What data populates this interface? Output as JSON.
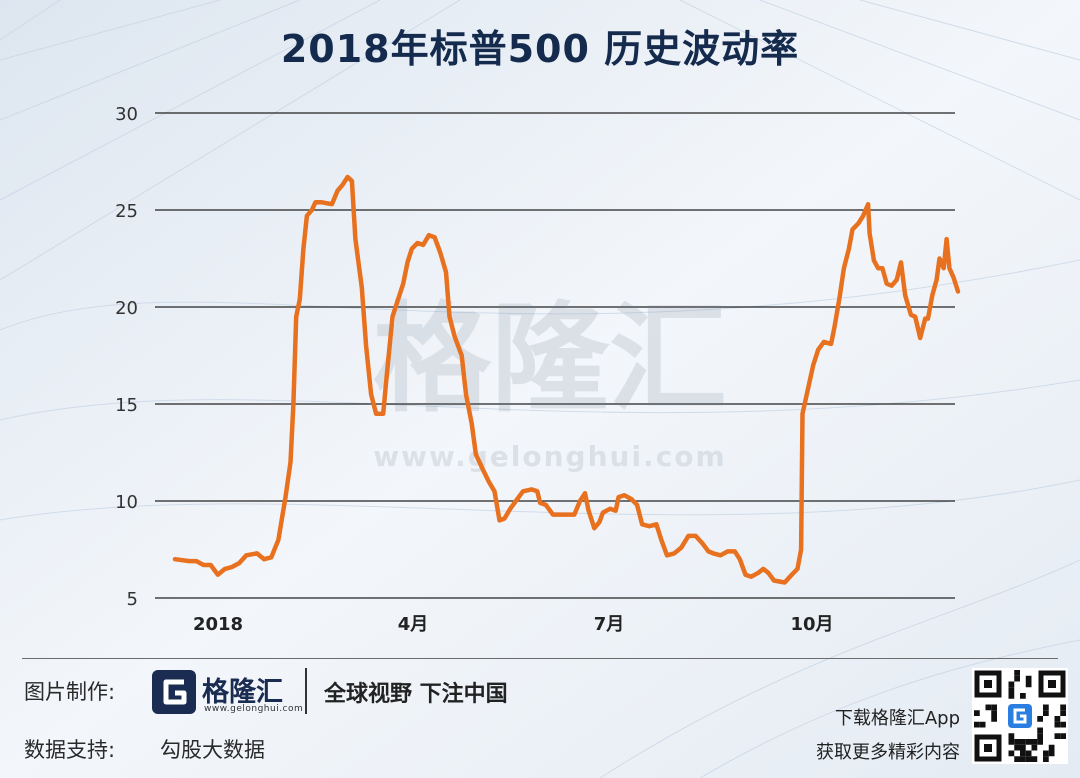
{
  "title": "2018年标普500 历史波动率",
  "watermark": {
    "name": "格隆汇",
    "url": "www.gelonghui.com"
  },
  "chart_data": {
    "type": "line",
    "title": "2018年标普500 历史波动率",
    "xlabel": "",
    "ylabel": "",
    "ylim": [
      5,
      30
    ],
    "yticks": [
      5,
      10,
      15,
      20,
      25,
      30
    ],
    "xticks": [
      {
        "label": "2018",
        "x": 0.5
      },
      {
        "label": "4月",
        "x": 3.0
      },
      {
        "label": "7月",
        "x": 6.0
      },
      {
        "label": "10月",
        "x": 9.0
      }
    ],
    "xlim": [
      -0.1,
      11.6
    ],
    "grid": true,
    "color": "#e8711f",
    "series": [
      {
        "name": "",
        "points": [
          [
            0.0,
            7.0
          ],
          [
            0.2,
            6.9
          ],
          [
            0.3,
            6.9
          ],
          [
            0.4,
            6.7
          ],
          [
            0.5,
            6.7
          ],
          [
            0.6,
            6.2
          ],
          [
            0.7,
            6.5
          ],
          [
            0.8,
            6.6
          ],
          [
            0.9,
            6.8
          ],
          [
            1.0,
            7.2
          ],
          [
            1.15,
            7.3
          ],
          [
            1.25,
            7.0
          ],
          [
            1.35,
            7.1
          ],
          [
            1.45,
            8.0
          ],
          [
            1.55,
            10.2
          ],
          [
            1.62,
            12.0
          ],
          [
            1.66,
            15.0
          ],
          [
            1.7,
            19.5
          ],
          [
            1.75,
            20.4
          ],
          [
            1.8,
            23.0
          ],
          [
            1.85,
            24.7
          ],
          [
            1.92,
            25.0
          ],
          [
            1.97,
            25.4
          ],
          [
            2.05,
            25.4
          ],
          [
            2.2,
            25.3
          ],
          [
            2.28,
            26.0
          ],
          [
            2.35,
            26.3
          ],
          [
            2.42,
            26.7
          ],
          [
            2.48,
            26.5
          ],
          [
            2.53,
            23.5
          ],
          [
            2.62,
            21.0
          ],
          [
            2.68,
            18.0
          ],
          [
            2.75,
            15.5
          ],
          [
            2.82,
            14.5
          ],
          [
            2.92,
            14.5
          ],
          [
            2.97,
            16.5
          ],
          [
            3.05,
            19.5
          ],
          [
            3.12,
            20.3
          ],
          [
            3.2,
            21.2
          ],
          [
            3.26,
            22.3
          ],
          [
            3.32,
            23.0
          ],
          [
            3.4,
            23.3
          ],
          [
            3.48,
            23.2
          ],
          [
            3.56,
            23.7
          ],
          [
            3.64,
            23.6
          ],
          [
            3.72,
            22.8
          ],
          [
            3.8,
            21.8
          ],
          [
            3.85,
            19.5
          ],
          [
            3.92,
            18.5
          ],
          [
            4.02,
            17.5
          ],
          [
            4.08,
            15.5
          ],
          [
            4.16,
            14.0
          ],
          [
            4.22,
            12.4
          ],
          [
            4.32,
            11.6
          ],
          [
            4.4,
            11.0
          ],
          [
            4.48,
            10.5
          ],
          [
            4.55,
            9.0
          ],
          [
            4.62,
            9.1
          ],
          [
            4.7,
            9.6
          ],
          [
            4.78,
            10.0
          ],
          [
            4.88,
            10.5
          ],
          [
            5.0,
            10.6
          ],
          [
            5.08,
            10.5
          ],
          [
            5.12,
            9.9
          ],
          [
            5.2,
            9.8
          ],
          [
            5.3,
            9.3
          ],
          [
            5.45,
            9.3
          ],
          [
            5.6,
            9.3
          ],
          [
            5.68,
            10.0
          ],
          [
            5.75,
            10.4
          ],
          [
            5.8,
            9.5
          ],
          [
            5.88,
            8.6
          ],
          [
            5.95,
            8.9
          ],
          [
            6.0,
            9.4
          ],
          [
            6.1,
            9.6
          ],
          [
            6.18,
            9.5
          ],
          [
            6.22,
            10.2
          ],
          [
            6.3,
            10.3
          ],
          [
            6.4,
            10.1
          ],
          [
            6.48,
            9.8
          ],
          [
            6.55,
            8.8
          ],
          [
            6.65,
            8.7
          ],
          [
            6.75,
            8.8
          ],
          [
            6.82,
            8.0
          ],
          [
            6.9,
            7.2
          ],
          [
            7.0,
            7.3
          ],
          [
            7.1,
            7.6
          ],
          [
            7.2,
            8.2
          ],
          [
            7.3,
            8.2
          ],
          [
            7.4,
            7.8
          ],
          [
            7.48,
            7.4
          ],
          [
            7.55,
            7.3
          ],
          [
            7.65,
            7.2
          ],
          [
            7.75,
            7.4
          ],
          [
            7.85,
            7.4
          ],
          [
            7.92,
            7.0
          ],
          [
            8.0,
            6.2
          ],
          [
            8.08,
            6.1
          ],
          [
            8.18,
            6.3
          ],
          [
            8.25,
            6.5
          ],
          [
            8.32,
            6.3
          ],
          [
            8.4,
            5.9
          ],
          [
            8.55,
            5.8
          ],
          [
            8.65,
            6.2
          ],
          [
            8.73,
            6.5
          ],
          [
            8.78,
            7.5
          ],
          [
            8.8,
            14.5
          ],
          [
            8.86,
            15.5
          ],
          [
            8.95,
            17.0
          ],
          [
            9.02,
            17.8
          ],
          [
            9.1,
            18.2
          ],
          [
            9.2,
            18.1
          ],
          [
            9.25,
            19.0
          ],
          [
            9.32,
            20.5
          ],
          [
            9.38,
            22.0
          ],
          [
            9.45,
            23.0
          ],
          [
            9.5,
            24.0
          ],
          [
            9.58,
            24.3
          ],
          [
            9.65,
            24.7
          ],
          [
            9.72,
            25.3
          ],
          [
            9.74,
            23.8
          ],
          [
            9.8,
            22.4
          ],
          [
            9.86,
            22.0
          ],
          [
            9.92,
            22.0
          ],
          [
            9.98,
            21.2
          ],
          [
            10.05,
            21.1
          ],
          [
            10.12,
            21.4
          ],
          [
            10.18,
            22.3
          ],
          [
            10.24,
            20.6
          ],
          [
            10.32,
            19.6
          ],
          [
            10.38,
            19.5
          ],
          [
            10.45,
            18.4
          ],
          [
            10.52,
            19.4
          ],
          [
            10.56,
            19.4
          ],
          [
            10.62,
            20.6
          ],
          [
            10.68,
            21.4
          ],
          [
            10.72,
            22.5
          ],
          [
            10.78,
            22.0
          ],
          [
            10.82,
            23.5
          ],
          [
            10.86,
            22.0
          ],
          [
            10.92,
            21.5
          ],
          [
            10.98,
            20.8
          ]
        ]
      }
    ]
  },
  "footer": {
    "made_by_label": "图片制作:",
    "brand_name": "格隆汇",
    "brand_url": "www.gelonghui.com",
    "slogan": "全球视野 下注中国",
    "data_label": "数据支持:",
    "data_source": "勾股大数据",
    "download_line1": "下载格隆汇App",
    "download_line2": "获取更多精彩内容"
  }
}
